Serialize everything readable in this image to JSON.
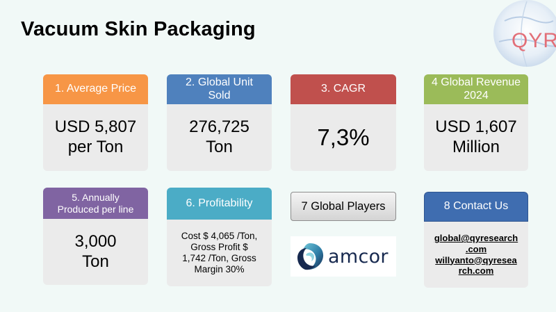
{
  "title": "Vacuum Skin Packaging",
  "logo": {
    "text": "QYR",
    "icon": "globe-logo-icon"
  },
  "colors": {
    "orange": "#f79646",
    "blue": "#4f81bd",
    "red": "#c0504d",
    "green": "#9bbb59",
    "purple": "#8064a2",
    "teal": "#4bacc6",
    "contact_blue": "#3f6db0"
  },
  "cards": {
    "average_price": {
      "head": "1. Average Price",
      "line1": "USD 5,807",
      "line2": "per Ton"
    },
    "global_unit": {
      "head_line1": "2. Global Unit",
      "head_line2": "Sold",
      "line1": "276,725",
      "line2": "Ton"
    },
    "cagr": {
      "head": "3. CAGR",
      "value": "7,3%"
    },
    "global_revenue": {
      "head_line1": "4 Global Revenue",
      "head_line2": "2024",
      "line1": "USD 1,607",
      "line2": "Million"
    },
    "annually_produced": {
      "head_line1": "5. Annually",
      "head_line2": "Produced per line",
      "line1": "3,000",
      "line2": "Ton"
    },
    "profitability": {
      "head": "6. Profitability",
      "line1": "Cost $ 4,065 /Ton,",
      "line2": "Gross Profit $",
      "line3": "1,742 /Ton, Gross",
      "line4": "Margin 30%"
    },
    "global_players": {
      "head": "7 Global Players",
      "brand": "amcor"
    },
    "contact": {
      "head": "8 Contact Us",
      "email1_line1": "global@qyresearch",
      "email1_line2": ".com",
      "email2_line1": "willyanto@qyresea",
      "email2_line2": "rch.com"
    }
  }
}
